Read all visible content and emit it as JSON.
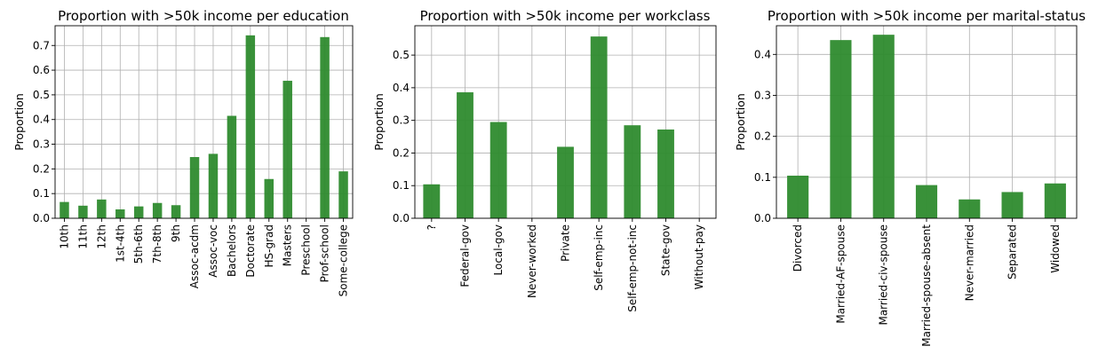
{
  "chart_data": [
    {
      "type": "bar",
      "title": "Proportion with >50k income per education",
      "xlabel": "",
      "ylabel": "Proportion",
      "ylim": [
        0,
        0.78
      ],
      "yticks": [
        0.0,
        0.1,
        0.2,
        0.3,
        0.4,
        0.5,
        0.6,
        0.7
      ],
      "ytick_labels": [
        "0.0",
        "0.1",
        "0.2",
        "0.3",
        "0.4",
        "0.5",
        "0.6",
        "0.7"
      ],
      "grid": true,
      "color": "#2e8b2e",
      "categories": [
        "10th",
        "11th",
        "12th",
        "1st-4th",
        "5th-6th",
        "7th-8th",
        "9th",
        "Assoc-acdm",
        "Assoc-voc",
        "Bachelors",
        "Doctorate",
        "HS-grad",
        "Masters",
        "Preschool",
        "Prof-school",
        "Some-college"
      ],
      "values": [
        0.066,
        0.051,
        0.076,
        0.036,
        0.048,
        0.062,
        0.053,
        0.248,
        0.261,
        0.415,
        0.741,
        0.159,
        0.557,
        0.0,
        0.734,
        0.19
      ]
    },
    {
      "type": "bar",
      "title": "Proportion with >50k income per workclass",
      "xlabel": "",
      "ylabel": "Proportion",
      "ylim": [
        0,
        0.59
      ],
      "yticks": [
        0.0,
        0.1,
        0.2,
        0.3,
        0.4,
        0.5
      ],
      "ytick_labels": [
        "0.0",
        "0.1",
        "0.2",
        "0.3",
        "0.4",
        "0.5"
      ],
      "grid": true,
      "color": "#2e8b2e",
      "categories": [
        "?",
        "Federal-gov",
        "Local-gov",
        "Never-worked",
        "Private",
        "Self-emp-inc",
        "Self-emp-not-inc",
        "State-gov",
        "Without-pay"
      ],
      "values": [
        0.104,
        0.386,
        0.295,
        0.0,
        0.219,
        0.557,
        0.285,
        0.272,
        0.0
      ]
    },
    {
      "type": "bar",
      "title": "Proportion with >50k income per marital-status",
      "xlabel": "",
      "ylabel": "Proportion",
      "ylim": [
        0,
        0.47
      ],
      "yticks": [
        0.0,
        0.1,
        0.2,
        0.3,
        0.4
      ],
      "ytick_labels": [
        "0.0",
        "0.1",
        "0.2",
        "0.3",
        "0.4"
      ],
      "grid": true,
      "color": "#2e8b2e",
      "categories": [
        "Divorced",
        "Married-AF-spouse",
        "Married-civ-spouse",
        "Married-spouse-absent",
        "Never-married",
        "Separated",
        "Widowed"
      ],
      "values": [
        0.104,
        0.435,
        0.448,
        0.081,
        0.046,
        0.064,
        0.085
      ]
    }
  ]
}
